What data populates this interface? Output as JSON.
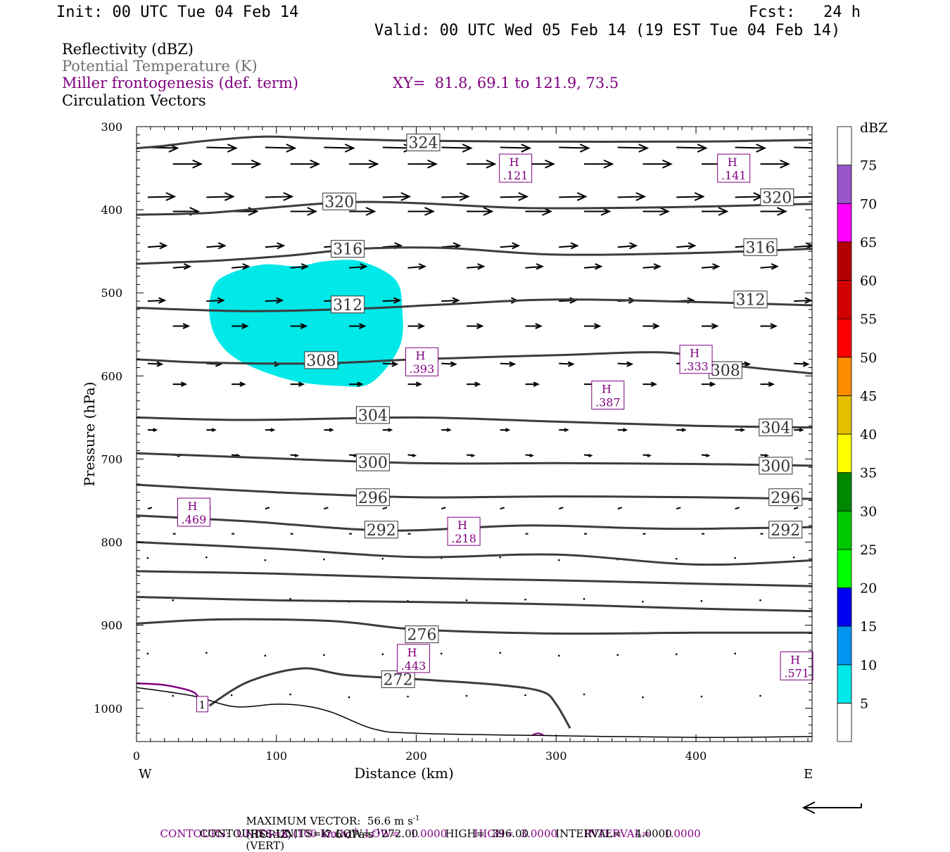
{
  "header": {
    "init": "Init: 00 UTC Tue 04 Feb 14",
    "fcst": "Fcst:   24 h",
    "valid": "Valid: 00 UTC Wed 05 Feb 14 (19 EST Tue 04 Feb 14)"
  },
  "legend": {
    "reflectivity": "Reflectivity (dBZ)",
    "potential_temp": "Potential Temperature (K)",
    "miller": "Miller frontogenesis (def. term)",
    "xy": "XY=  81.8, 69.1 to 121.9, 73.5",
    "circulation": "Circulation Vectors"
  },
  "colors": {
    "theta_line": "#3c3c3c",
    "vector": "#000000",
    "purple": "#800080",
    "refl_fill": "#00e8e8"
  },
  "footer": {
    "max_vector_prefix": "MAXIMUM VECTOR:  56.6 m s",
    "max_vector_mid": "(HORIZ)          7.6 dPa s",
    "max_vector_end": "(VERT)",
    "contours1_a": "CONTOURS:  UNITS=K (100 km h)",
    "contours1_b": "  LOW=   1.0000        HIGH=  3.0000        INTERVAL=    1.0000",
    "contours2": "CONTOURS:  UNITS=K  LOW=   272.00        HIGH=  396.00        INTERVAL=    4.0000",
    "exp_minus1": "-1"
  },
  "chart_data": {
    "type": "cross-section",
    "xlabel": "Distance (km)",
    "ylabel": "Pressure (hPa)",
    "xlim": [
      0,
      483
    ],
    "ylim": [
      1040,
      300
    ],
    "x_ticks": [
      0,
      100,
      200,
      300,
      400
    ],
    "y_ticks": [
      300,
      400,
      500,
      600,
      700,
      800,
      900,
      1000
    ],
    "x_end_labels": {
      "left": "W",
      "right": "E"
    },
    "colorbar": {
      "unit": "dBZ",
      "levels": [
        5,
        10,
        15,
        20,
        25,
        30,
        35,
        40,
        45,
        50,
        55,
        60,
        65,
        70,
        75
      ],
      "colors": [
        "#ffffff",
        "#00e8e8",
        "#0096f0",
        "#0000f0",
        "#00ff00",
        "#00c800",
        "#008800",
        "#ffff00",
        "#e6be00",
        "#ff8c00",
        "#ff0000",
        "#d00000",
        "#b40000",
        "#ff00ff",
        "#9955cc",
        "#ffffff"
      ]
    },
    "theta_contours": [
      {
        "label": "324",
        "points": [
          [
            0,
            326
          ],
          [
            20,
            323
          ],
          [
            50,
            317
          ],
          [
            90,
            312
          ],
          [
            130,
            314
          ],
          [
            200,
            317
          ],
          [
            300,
            318
          ],
          [
            400,
            318
          ],
          [
            483,
            316
          ]
        ],
        "label_at": [
          205,
          319
        ]
      },
      {
        "label": "320",
        "points": [
          [
            0,
            406
          ],
          [
            50,
            404
          ],
          [
            100,
            397
          ],
          [
            150,
            391
          ],
          [
            200,
            392
          ],
          [
            280,
            398
          ],
          [
            380,
            397
          ],
          [
            483,
            393
          ]
        ],
        "label_at": [
          145,
          390
        ],
        "label2_at": [
          458,
          385
        ]
      },
      {
        "label": "316",
        "points": [
          [
            0,
            465
          ],
          [
            60,
            461
          ],
          [
            110,
            455
          ],
          [
            160,
            447
          ],
          [
            220,
            446
          ],
          [
            300,
            454
          ],
          [
            400,
            452
          ],
          [
            483,
            447
          ]
        ],
        "label_at": [
          151,
          447
        ],
        "label2_at": [
          446,
          445
        ]
      },
      {
        "label": "312",
        "points": [
          [
            0,
            518
          ],
          [
            80,
            522
          ],
          [
            160,
            519
          ],
          [
            220,
            514
          ],
          [
            300,
            508
          ],
          [
            400,
            511
          ],
          [
            483,
            515
          ]
        ],
        "label_at": [
          151,
          514
        ],
        "label2_at": [
          439,
          508
        ]
      },
      {
        "label": "308",
        "points": [
          [
            0,
            580
          ],
          [
            50,
            584
          ],
          [
            130,
            585
          ],
          [
            200,
            580
          ],
          [
            300,
            575
          ],
          [
            380,
            572
          ],
          [
            420,
            586
          ],
          [
            483,
            597
          ]
        ],
        "label_at": [
          132,
          581
        ],
        "label2_at": [
          421,
          593
        ]
      },
      {
        "label": "304",
        "points": [
          [
            0,
            650
          ],
          [
            80,
            653
          ],
          [
            200,
            650
          ],
          [
            300,
            655
          ],
          [
            400,
            660
          ],
          [
            483,
            662
          ]
        ],
        "label_at": [
          169,
          647
        ],
        "label2_at": [
          457,
          662
        ]
      },
      {
        "label": "300",
        "points": [
          [
            0,
            693
          ],
          [
            80,
            698
          ],
          [
            200,
            705
          ],
          [
            300,
            705
          ],
          [
            400,
            706
          ],
          [
            483,
            708
          ]
        ],
        "label_at": [
          169,
          704
        ],
        "label2_at": [
          457,
          708
        ]
      },
      {
        "label": "296",
        "points": [
          [
            0,
            731
          ],
          [
            100,
            740
          ],
          [
            200,
            746
          ],
          [
            300,
            745
          ],
          [
            400,
            746
          ],
          [
            483,
            748
          ]
        ],
        "label_at": [
          169,
          746
        ],
        "label2_at": [
          464,
          746
        ]
      },
      {
        "label": "292",
        "points": [
          [
            0,
            768
          ],
          [
            80,
            775
          ],
          [
            180,
            786
          ],
          [
            280,
            780
          ],
          [
            380,
            784
          ],
          [
            483,
            782
          ]
        ],
        "label_at": [
          175,
          785
        ],
        "label2_at": [
          464,
          785
        ]
      },
      {
        "label": "",
        "points": [
          [
            0,
            800
          ],
          [
            100,
            808
          ],
          [
            200,
            818
          ],
          [
            300,
            815
          ],
          [
            400,
            827
          ],
          [
            483,
            822
          ]
        ]
      },
      {
        "label": "",
        "points": [
          [
            0,
            835
          ],
          [
            100,
            838
          ],
          [
            200,
            843
          ],
          [
            300,
            846
          ],
          [
            400,
            850
          ],
          [
            483,
            853
          ]
        ]
      },
      {
        "label": "",
        "points": [
          [
            0,
            866
          ],
          [
            100,
            870
          ],
          [
            200,
            872
          ],
          [
            300,
            875
          ],
          [
            400,
            880
          ],
          [
            483,
            883
          ]
        ]
      },
      {
        "label": "276",
        "points": [
          [
            0,
            898
          ],
          [
            60,
            893
          ],
          [
            140,
            895
          ],
          [
            200,
            905
          ],
          [
            300,
            910
          ],
          [
            400,
            909
          ],
          [
            483,
            909
          ]
        ],
        "label_at": [
          204,
          911
        ]
      },
      {
        "label": "272",
        "points": [
          [
            52,
            997
          ],
          [
            80,
            968
          ],
          [
            118,
            952
          ],
          [
            150,
            960
          ],
          [
            200,
            965
          ],
          [
            260,
            972
          ],
          [
            290,
            980
          ],
          [
            300,
            995
          ],
          [
            310,
            1024
          ]
        ],
        "label_at": [
          187,
          965
        ]
      }
    ],
    "terrain": [
      [
        0,
        975
      ],
      [
        40,
        985
      ],
      [
        70,
        998
      ],
      [
        100,
        995
      ],
      [
        120,
        997
      ],
      [
        140,
        1005
      ],
      [
        170,
        1025
      ],
      [
        200,
        1030
      ],
      [
        300,
        1033
      ],
      [
        400,
        1035
      ],
      [
        483,
        1034
      ]
    ],
    "reflectivity_region": {
      "dbz": 5,
      "outline": [
        [
          55,
          493
        ],
        [
          65,
          478
        ],
        [
          90,
          466
        ],
        [
          115,
          468
        ],
        [
          135,
          462
        ],
        [
          160,
          462
        ],
        [
          185,
          484
        ],
        [
          190,
          520
        ],
        [
          188,
          565
        ],
        [
          168,
          608
        ],
        [
          145,
          612
        ],
        [
          110,
          605
        ],
        [
          75,
          583
        ],
        [
          58,
          557
        ],
        [
          52,
          524
        ]
      ]
    },
    "frontogenesis_highs": [
      {
        "value": ".121",
        "at": [
          271,
          350
        ]
      },
      {
        "value": ".141",
        "at": [
          427,
          350
        ]
      },
      {
        "value": ".393",
        "at": [
          204,
          583
        ]
      },
      {
        "value": ".333",
        "at": [
          400,
          580
        ]
      },
      {
        "value": ".387",
        "at": [
          337,
          623
        ]
      },
      {
        "value": ".469",
        "at": [
          41,
          764
        ]
      },
      {
        "value": ".218",
        "at": [
          234,
          787
        ]
      },
      {
        "value": ".443",
        "at": [
          198,
          940
        ]
      },
      {
        "value": ".571",
        "at": [
          472,
          949
        ]
      }
    ],
    "frontogenesis_contour_label": {
      "value": "1",
      "at": [
        47,
        995
      ]
    },
    "vector_rows": [
      {
        "p": 325,
        "len": 42,
        "dy": 1
      },
      {
        "p": 345,
        "len": 40,
        "dy": 0
      },
      {
        "p": 385,
        "len": 38,
        "dy": -1
      },
      {
        "p": 402,
        "len": 36,
        "dy": 0
      },
      {
        "p": 445,
        "len": 26,
        "dy": -2
      },
      {
        "p": 470,
        "len": 24,
        "dy": -2
      },
      {
        "p": 510,
        "len": 24,
        "dy": -1
      },
      {
        "p": 540,
        "len": 22,
        "dy": 0
      },
      {
        "p": 585,
        "len": 20,
        "dy": 1
      },
      {
        "p": 610,
        "len": 18,
        "dy": 0
      },
      {
        "p": 665,
        "len": 12,
        "dy": 0
      },
      {
        "p": 695,
        "len": 10,
        "dy": 1
      },
      {
        "p": 760,
        "len": 6,
        "dy": -2
      },
      {
        "p": 790,
        "len": 4,
        "dy": 0
      },
      {
        "p": 820,
        "len": 2,
        "dy": -1
      },
      {
        "p": 870,
        "len": 1,
        "dy": 0
      },
      {
        "p": 935,
        "len": 1,
        "dy": 0
      },
      {
        "p": 985,
        "len": 1,
        "dy": 0
      }
    ],
    "title": "",
    "grid": false
  }
}
